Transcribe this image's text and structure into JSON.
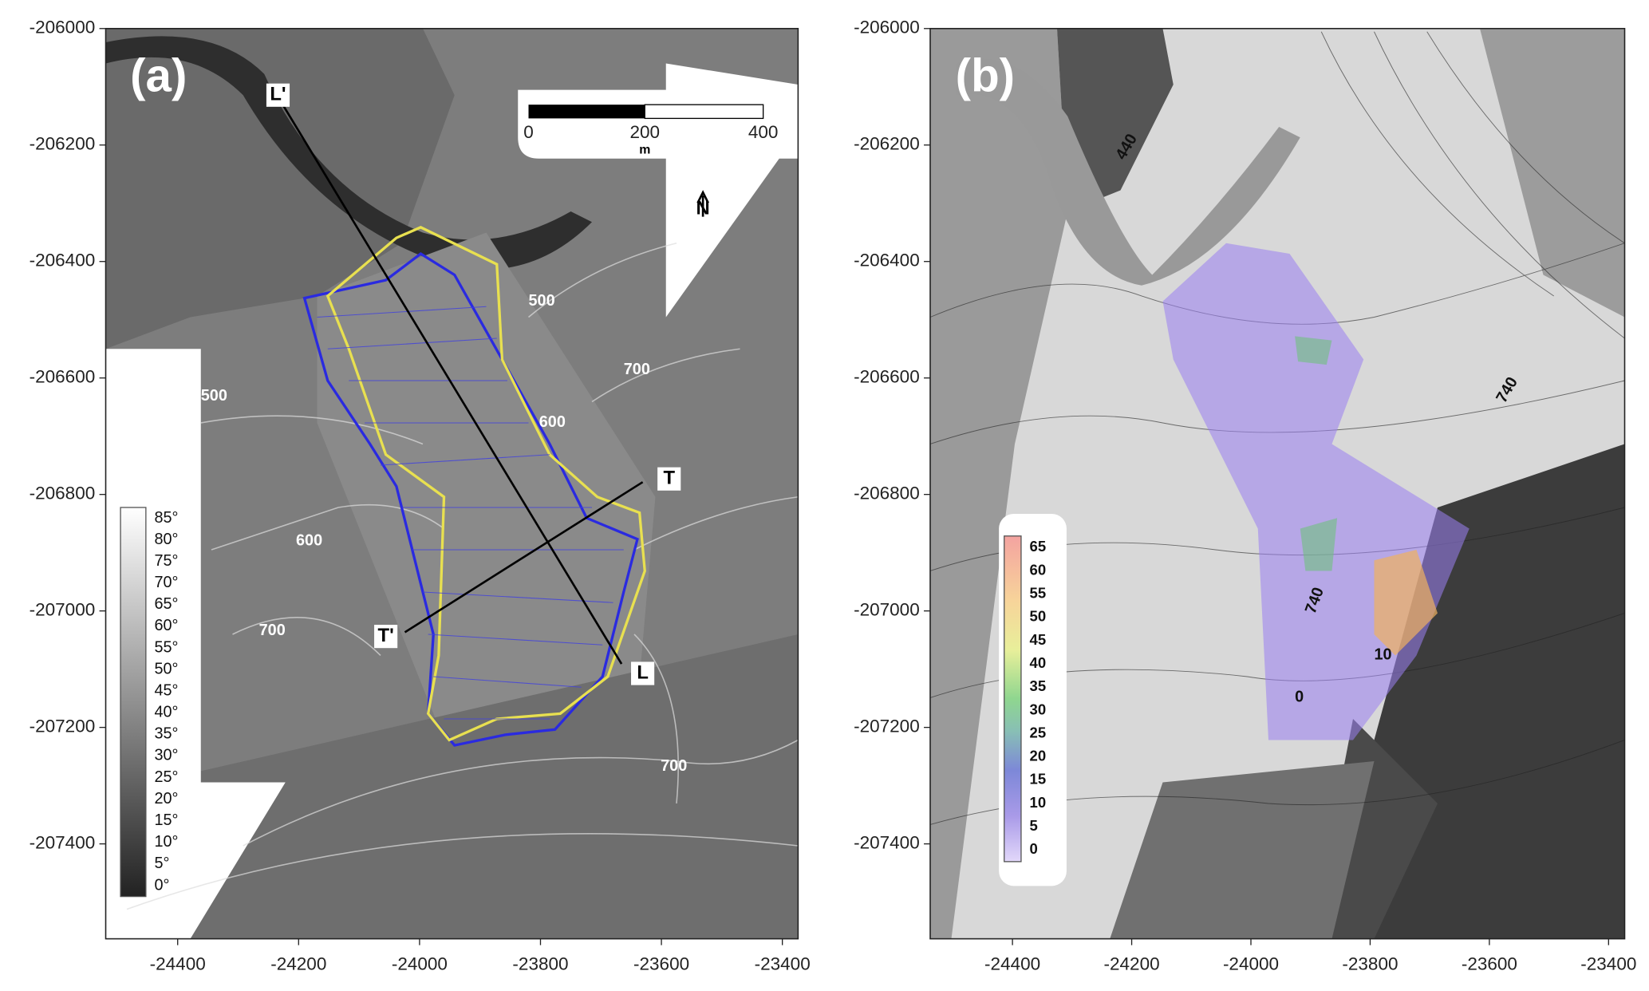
{
  "panels": [
    {
      "label": "(a)",
      "xlim": [
        -24519,
        -23374
      ],
      "ylim": [
        -207563,
        -206000
      ],
      "xticks": [
        -24400,
        -24200,
        -24000,
        -23800,
        -23600,
        -23400
      ],
      "yticks": [
        -206000,
        -206200,
        -206400,
        -206600,
        -206800,
        -207000,
        -207200,
        -207400
      ],
      "colorbar": [
        "85°",
        "80°",
        "75°",
        "70°",
        "65°",
        "60°",
        "55°",
        "50°",
        "45°",
        "40°",
        "35°",
        "30°",
        "25°",
        "20°",
        "15°",
        "10°",
        "5°",
        "0°"
      ],
      "contour_labels": [
        "500",
        "700",
        "500",
        "600",
        "600",
        "700",
        "700"
      ],
      "sections": [
        "L'",
        "L",
        "T",
        "T'"
      ],
      "scale_bar": {
        "ticks": [
          "0",
          "200",
          "400"
        ],
        "unit": "m"
      },
      "north": "N"
    },
    {
      "label": "(b)",
      "xlim": [
        -24538,
        -23373
      ],
      "ylim": [
        -207563,
        -206000
      ],
      "xticks": [
        -24400,
        -24200,
        -24000,
        -23800,
        -23600,
        -23400
      ],
      "yticks": [
        -206000,
        -206200,
        -206400,
        -206600,
        -206800,
        -207000,
        -207200,
        -207400
      ],
      "colorbar": [
        65,
        60,
        55,
        50,
        45,
        40,
        35,
        30,
        25,
        20,
        15,
        10,
        5,
        0
      ],
      "contour_labels": [
        "440",
        "740",
        "740",
        "10",
        "0"
      ]
    }
  ]
}
